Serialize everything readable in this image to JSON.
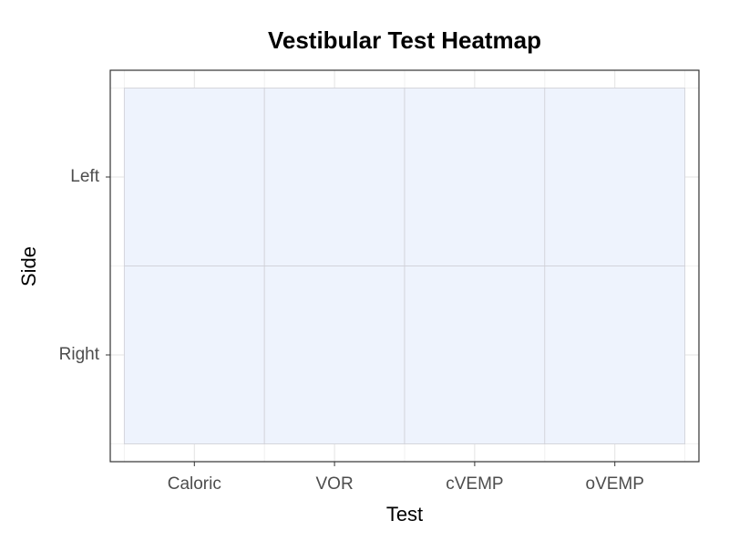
{
  "chart_data": {
    "type": "heatmap",
    "title": "Vestibular Test Heatmap",
    "x_label": "Test",
    "y_label": "Side",
    "x_categories": [
      "Caloric",
      "VOR",
      "cVEMP",
      "oVEMP"
    ],
    "y_categories": [
      "Left",
      "Right"
    ],
    "values": [
      [
        null,
        null,
        null,
        null
      ],
      [
        null,
        null,
        null,
        null
      ]
    ],
    "color": "#eef3fd",
    "grid": true
  }
}
